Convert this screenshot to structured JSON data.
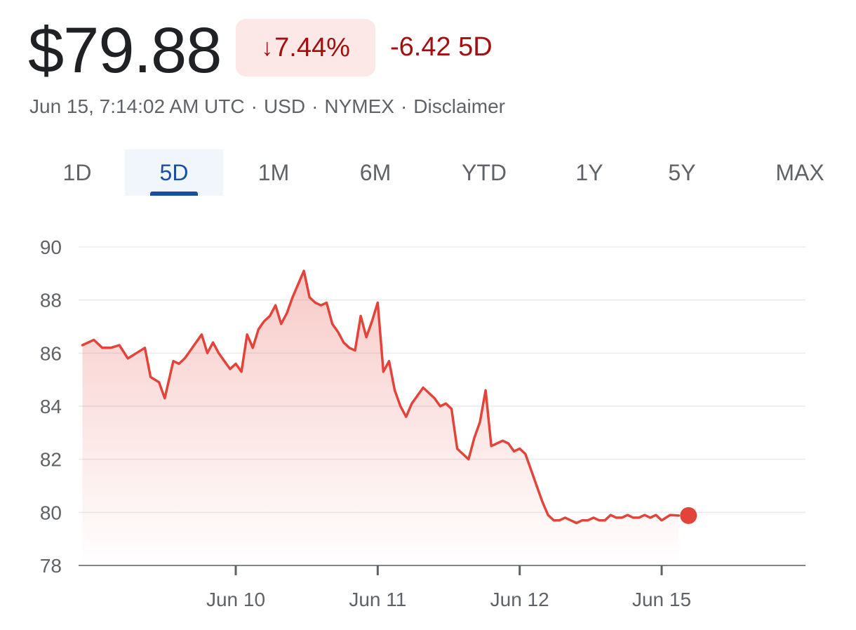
{
  "quote": {
    "price": "$79.88",
    "change_arrow": "↓",
    "change_pct": "7.44%",
    "change_abs": "-6.42 5D",
    "meta": {
      "timestamp": "Jun 15, 7:14:02 AM UTC",
      "currency": "USD",
      "exchange": "NYMEX",
      "disclaimer": "Disclaimer",
      "separator": "·"
    },
    "colors": {
      "negative": "#a50e0e",
      "negative_bg": "#fce8e6",
      "line": "#e2443a",
      "accent": "#174ea6"
    }
  },
  "range_tabs": [
    {
      "label": "1D",
      "active": false
    },
    {
      "label": "5D",
      "active": true
    },
    {
      "label": "1M",
      "active": false
    },
    {
      "label": "6M",
      "active": false
    },
    {
      "label": "YTD",
      "active": false
    },
    {
      "label": "1Y",
      "active": false
    },
    {
      "label": "5Y",
      "active": false
    },
    {
      "label": "MAX",
      "active": false
    }
  ],
  "chart_data": {
    "type": "area",
    "title": "",
    "xlabel": "",
    "ylabel": "",
    "ylim": [
      78,
      90
    ],
    "yticks": [
      90,
      88,
      86,
      84,
      82,
      80,
      78
    ],
    "x_tick_labels": [
      "Jun 10",
      "Jun 11",
      "Jun 12",
      "Jun 15"
    ],
    "x_tick_positions": [
      1.0,
      2.0,
      3.0,
      4.0
    ],
    "x_range": [
      -0.08,
      5.1
    ],
    "grid": true,
    "last_point_marker": true,
    "series": [
      {
        "x": [
          -0.08,
          0.0,
          0.06,
          0.12,
          0.18,
          0.24,
          0.3,
          0.36,
          0.4,
          0.46,
          0.5,
          0.56,
          0.6,
          0.64,
          0.68,
          0.72,
          0.76,
          0.8,
          0.84,
          0.88,
          0.92,
          0.96,
          1.0,
          1.04,
          1.08,
          1.12,
          1.16,
          1.2,
          1.24,
          1.28,
          1.32,
          1.36,
          1.4,
          1.44,
          1.48,
          1.52,
          1.56,
          1.6,
          1.64,
          1.68,
          1.72,
          1.76,
          1.8,
          1.84,
          1.88,
          1.92,
          1.96,
          2.0,
          2.04,
          2.08,
          2.12,
          2.16,
          2.2,
          2.24,
          2.28,
          2.32,
          2.36,
          2.4,
          2.44,
          2.48,
          2.52,
          2.56,
          2.6,
          2.64,
          2.68,
          2.72,
          2.76,
          2.8,
          2.84,
          2.88,
          2.92,
          2.96,
          3.0,
          3.04,
          3.08,
          3.12,
          3.16,
          3.2,
          3.24,
          3.28,
          3.32,
          3.36,
          3.4,
          3.44,
          3.48,
          3.52,
          3.56,
          3.6,
          3.64,
          3.68,
          3.72,
          3.76,
          3.8,
          3.84,
          3.88,
          3.92,
          3.96,
          4.0,
          4.06,
          4.12
        ],
        "y": [
          86.3,
          86.5,
          86.2,
          86.2,
          86.3,
          85.8,
          86.0,
          86.2,
          85.1,
          84.9,
          84.3,
          85.7,
          85.6,
          85.8,
          86.1,
          86.4,
          86.7,
          86.0,
          86.4,
          86.0,
          85.7,
          85.4,
          85.6,
          85.3,
          86.7,
          86.2,
          86.9,
          87.2,
          87.4,
          87.8,
          87.1,
          87.5,
          88.1,
          88.6,
          89.1,
          88.1,
          87.9,
          87.8,
          87.9,
          87.1,
          86.8,
          86.4,
          86.2,
          86.1,
          87.4,
          86.6,
          87.2,
          87.9,
          85.3,
          85.7,
          84.6,
          84.0,
          83.6,
          84.1,
          84.4,
          84.7,
          84.5,
          84.3,
          84.0,
          84.1,
          83.9,
          82.4,
          82.2,
          82.0,
          82.8,
          83.4,
          84.6,
          82.5,
          82.6,
          82.7,
          82.6,
          82.3,
          82.4,
          82.2,
          81.6,
          81.0,
          80.4,
          79.9,
          79.7,
          79.7,
          79.8,
          79.7,
          79.6,
          79.7,
          79.7,
          79.8,
          79.7,
          79.7,
          79.9,
          79.8,
          79.8,
          79.9,
          79.8,
          79.8,
          79.9,
          79.8,
          79.9,
          79.7,
          79.9,
          79.88
        ]
      }
    ]
  }
}
